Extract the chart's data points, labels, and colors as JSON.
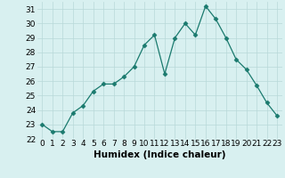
{
  "x": [
    0,
    1,
    2,
    3,
    4,
    5,
    6,
    7,
    8,
    9,
    10,
    11,
    12,
    13,
    14,
    15,
    16,
    17,
    18,
    19,
    20,
    21,
    22,
    23
  ],
  "y": [
    23.0,
    22.5,
    22.5,
    23.8,
    24.3,
    25.3,
    25.8,
    25.8,
    26.3,
    27.0,
    28.5,
    29.2,
    26.5,
    29.0,
    30.0,
    29.2,
    31.2,
    30.3,
    29.0,
    27.5,
    26.8,
    25.7,
    24.5,
    23.6
  ],
  "line_color": "#1a7a6e",
  "marker": "D",
  "marker_size": 2.5,
  "bg_color": "#d8f0f0",
  "grid_color": "#b8d8d8",
  "xlabel": "Humidex (Indice chaleur)",
  "ylim": [
    22,
    31.5
  ],
  "yticks": [
    22,
    23,
    24,
    25,
    26,
    27,
    28,
    29,
    30,
    31
  ],
  "xticks": [
    0,
    1,
    2,
    3,
    4,
    5,
    6,
    7,
    8,
    9,
    10,
    11,
    12,
    13,
    14,
    15,
    16,
    17,
    18,
    19,
    20,
    21,
    22,
    23
  ],
  "xtick_labels": [
    "0",
    "1",
    "2",
    "3",
    "4",
    "5",
    "6",
    "7",
    "8",
    "9",
    "10",
    "11",
    "12",
    "13",
    "14",
    "15",
    "16",
    "17",
    "18",
    "19",
    "20",
    "21",
    "22",
    "23"
  ],
  "tick_fontsize": 6.5,
  "xlabel_fontsize": 7.5
}
